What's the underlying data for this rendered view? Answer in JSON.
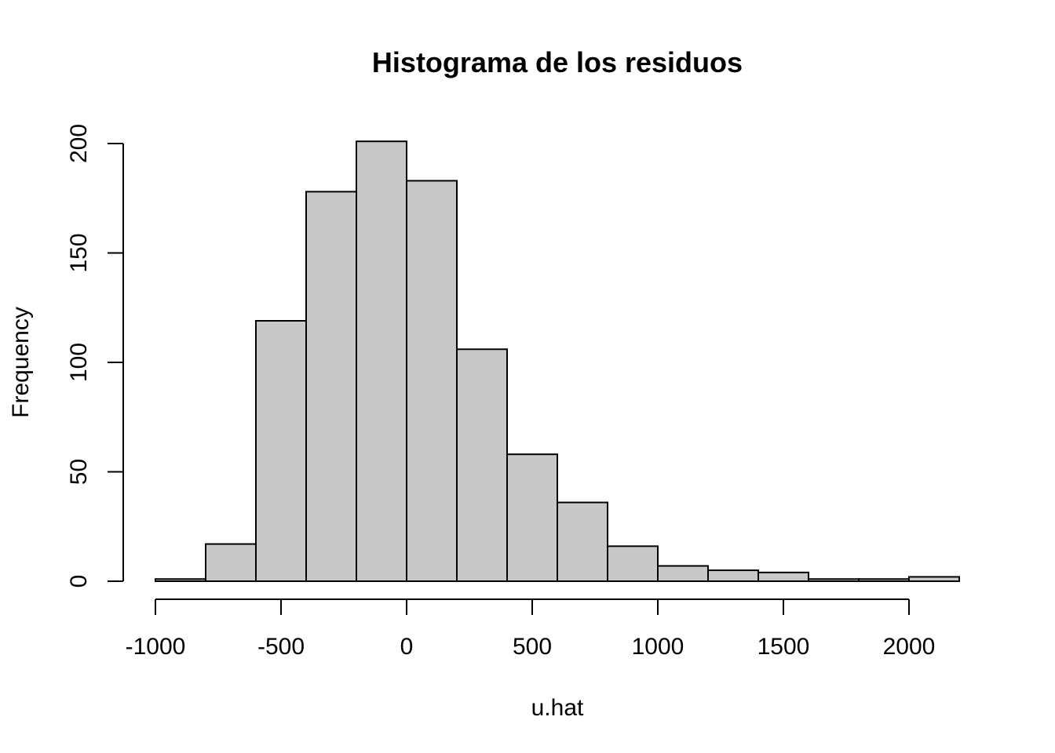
{
  "chart_data": {
    "type": "bar",
    "title": "Histograma de los residuos",
    "xlabel": "u.hat",
    "ylabel": "Frequency",
    "bar_fill": "#c8c8c8",
    "bar_stroke": "#000000",
    "bins": [
      {
        "start": -1000,
        "end": -800,
        "count": 1
      },
      {
        "start": -800,
        "end": -600,
        "count": 17
      },
      {
        "start": -600,
        "end": -400,
        "count": 119
      },
      {
        "start": -400,
        "end": -200,
        "count": 178
      },
      {
        "start": -200,
        "end": 0,
        "count": 201
      },
      {
        "start": 0,
        "end": 200,
        "count": 183
      },
      {
        "start": 200,
        "end": 400,
        "count": 106
      },
      {
        "start": 400,
        "end": 600,
        "count": 58
      },
      {
        "start": 600,
        "end": 800,
        "count": 36
      },
      {
        "start": 800,
        "end": 1000,
        "count": 16
      },
      {
        "start": 1000,
        "end": 1200,
        "count": 7
      },
      {
        "start": 1200,
        "end": 1400,
        "count": 5
      },
      {
        "start": 1400,
        "end": 1600,
        "count": 4
      },
      {
        "start": 1600,
        "end": 1800,
        "count": 1
      },
      {
        "start": 1800,
        "end": 2000,
        "count": 1
      },
      {
        "start": 2000,
        "end": 2200,
        "count": 2
      }
    ],
    "x_ticks": [
      -1000,
      -500,
      0,
      500,
      1000,
      1500,
      2000
    ],
    "x_tick_labels": [
      "-1000",
      "-500",
      "0",
      "500",
      "1000",
      "1500",
      "2000"
    ],
    "y_ticks": [
      0,
      50,
      100,
      150,
      200
    ],
    "y_tick_labels": [
      "0",
      "50",
      "100",
      "150",
      "200"
    ],
    "xlim": [
      -1000,
      2200
    ],
    "ylim": [
      0,
      200
    ],
    "grid": false,
    "legend": "none"
  }
}
